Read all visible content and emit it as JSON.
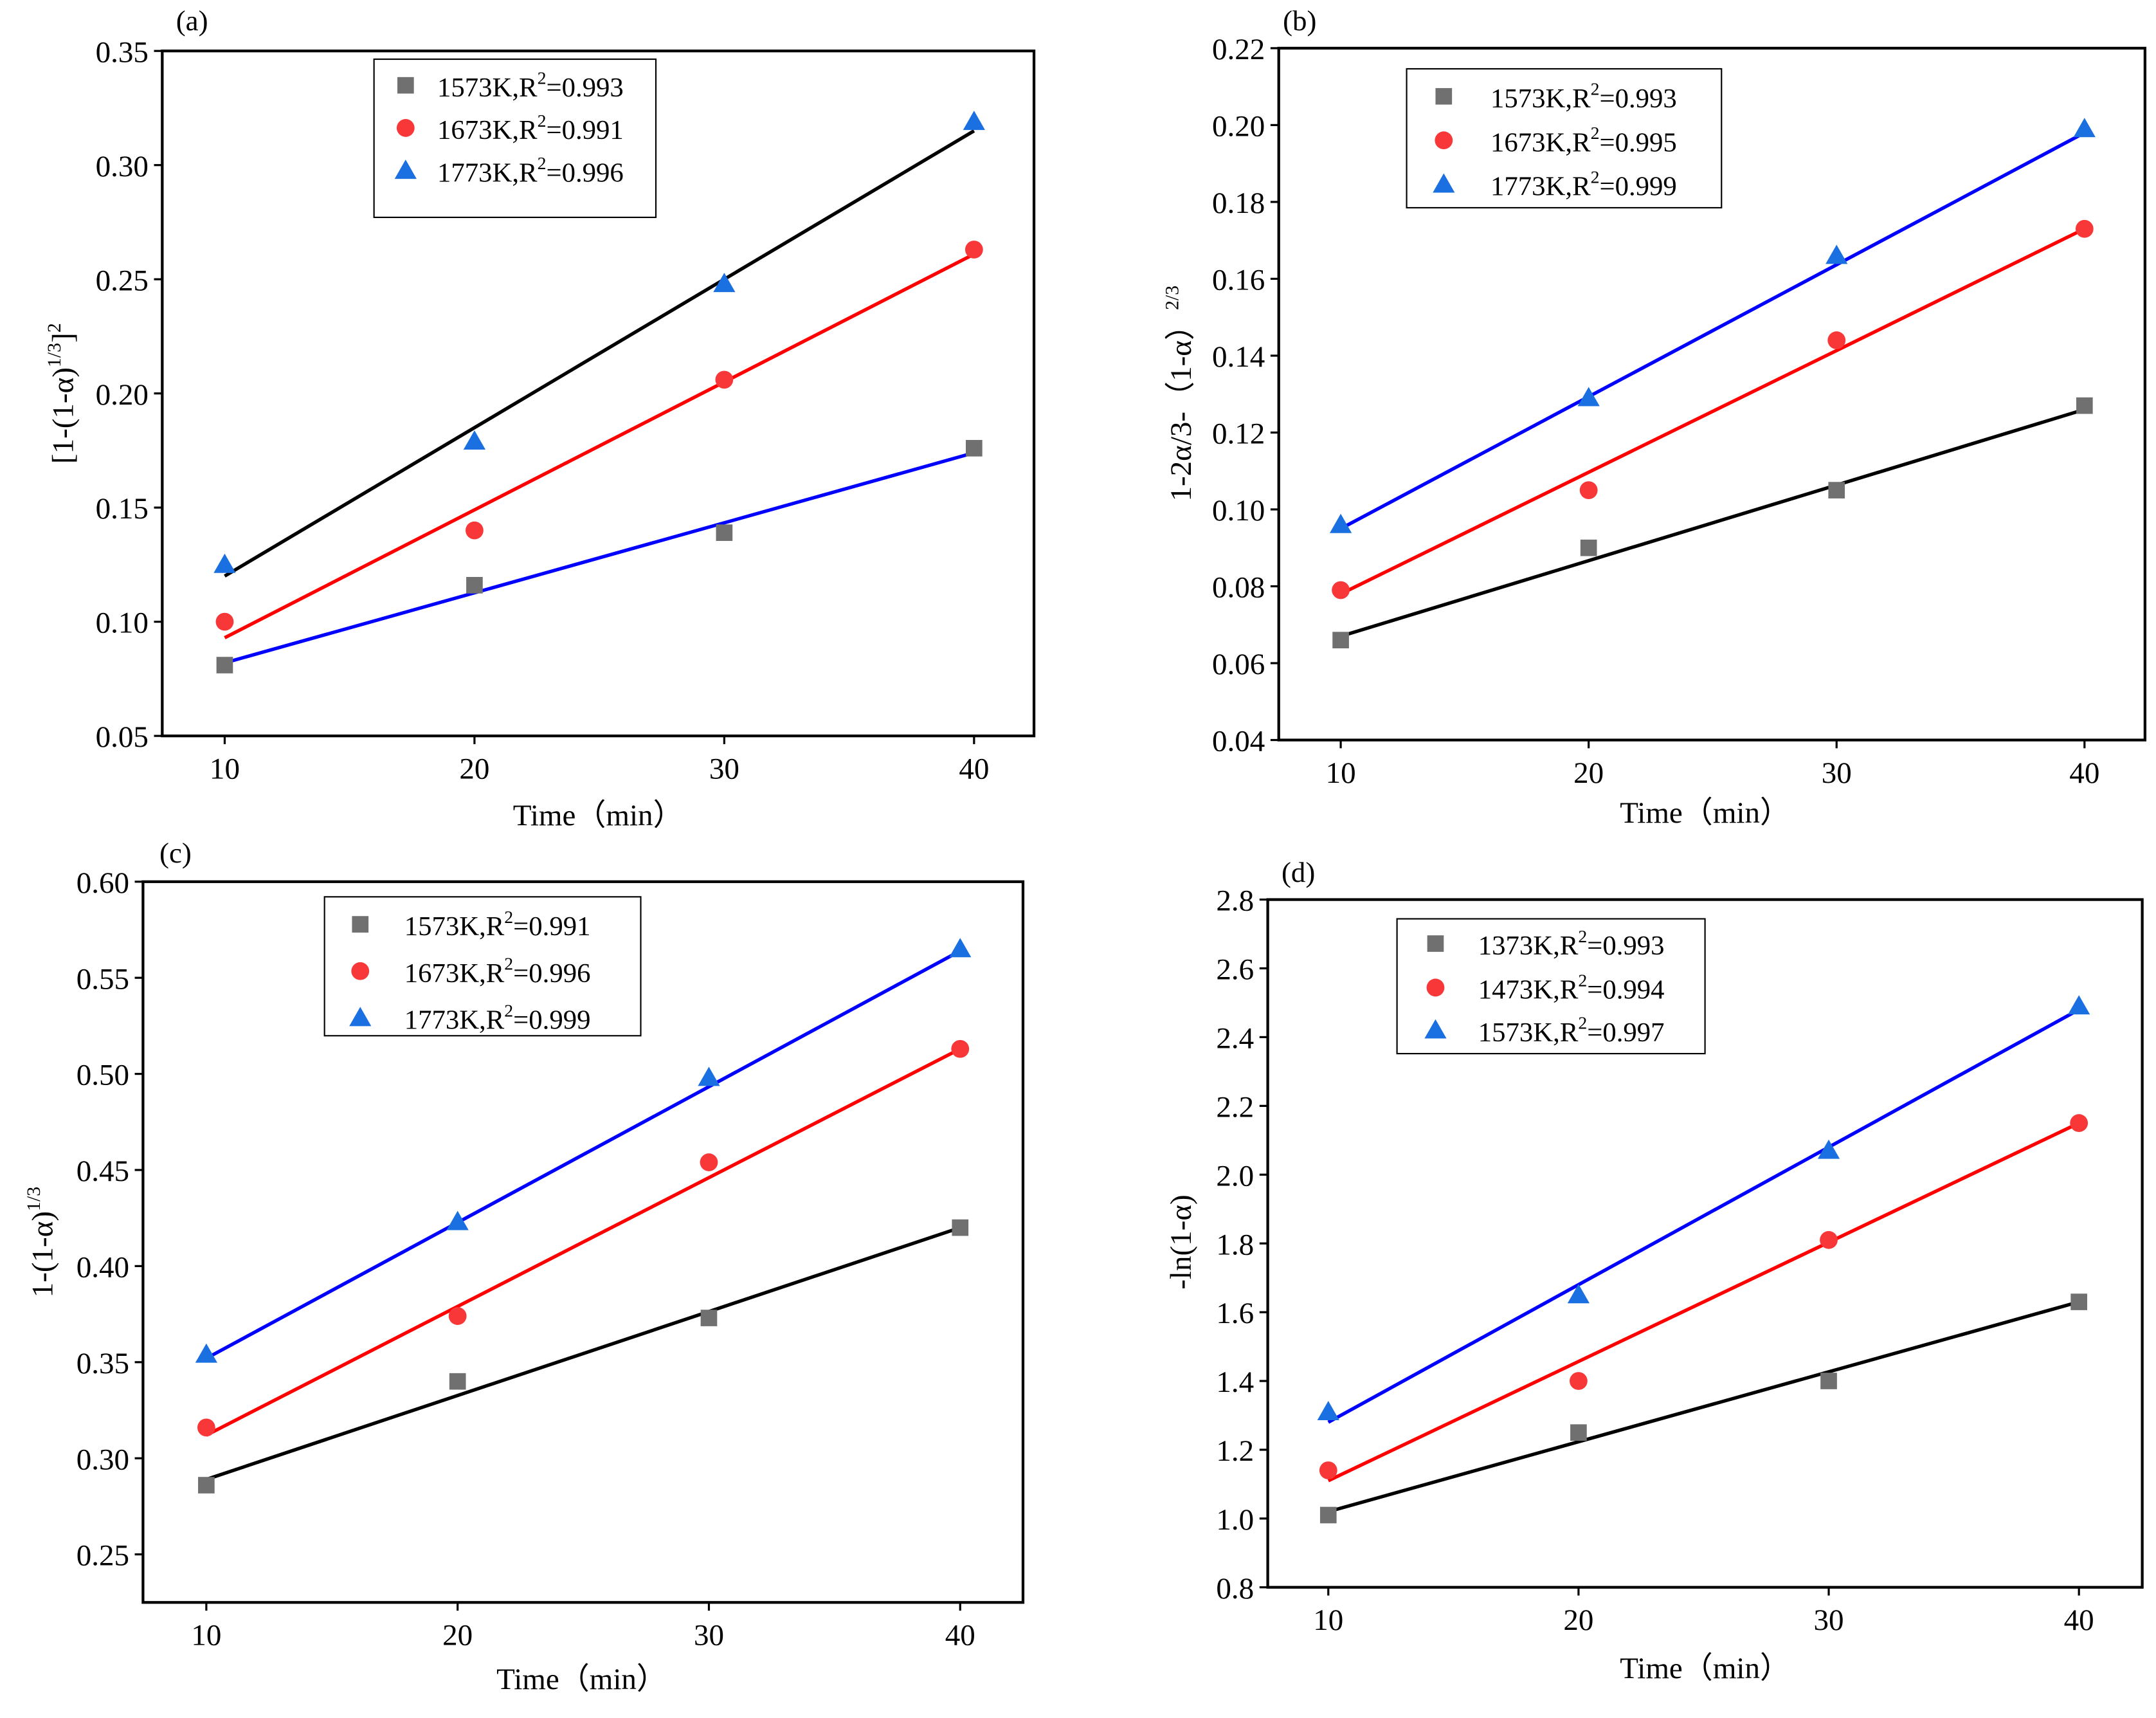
{
  "colors": {
    "square": "#707070",
    "circle": "#f83838",
    "triangle": "#1a70e0",
    "black": "#000000",
    "red": "#ff0000",
    "blue": "#0000ff"
  },
  "chart_data": [
    {
      "type": "scatter",
      "panel_label": "(a)",
      "xlabel": "Time（min）",
      "ylabel": [
        {
          "t": "[1-(1-α)"
        },
        {
          "t": "1/3",
          "sup": true
        },
        {
          "t": "]"
        },
        {
          "t": "2",
          "sup": true
        }
      ],
      "xlim": [
        7.5,
        42.4
      ],
      "ylim": [
        0.05,
        0.35
      ],
      "xticks": [
        10,
        20,
        30,
        40
      ],
      "yticks": [
        "0.05",
        "0.10",
        "0.15",
        "0.20",
        "0.25",
        "0.30",
        "0.35"
      ],
      "x": [
        10,
        20,
        30,
        40
      ],
      "series": [
        {
          "name": "1573K,R",
          "sup": "2",
          "tail": "=0.993",
          "marker": "square",
          "values": [
            0.081,
            0.116,
            0.139,
            0.176
          ],
          "fit": [
            0.082,
            0.174
          ],
          "fit_color": "blue"
        },
        {
          "name": "1673K,R",
          "sup": "2",
          "tail": "=0.991",
          "marker": "circle",
          "values": [
            0.1,
            0.14,
            0.206,
            0.263
          ],
          "fit": [
            0.093,
            0.261
          ],
          "fit_color": "red"
        },
        {
          "name": "1773K,R",
          "sup": "2",
          "tail": "=0.996",
          "marker": "triangle",
          "values": [
            0.125,
            0.179,
            0.248,
            0.319
          ],
          "fit": [
            0.12,
            0.315
          ],
          "fit_color": "black"
        }
      ]
    },
    {
      "type": "scatter",
      "panel_label": "(b)",
      "xlabel": "Time（min）",
      "ylabel": [
        {
          "t": "1-2α/3-（1-α）"
        },
        {
          "t": "2/3",
          "sup": true
        }
      ],
      "xlim": [
        7.5,
        42.44
      ],
      "ylim": [
        0.04,
        0.22
      ],
      "xticks": [
        10,
        20,
        30,
        40
      ],
      "yticks": [
        "0.04",
        "0.06",
        "0.08",
        "0.10",
        "0.12",
        "0.14",
        "0.16",
        "0.18",
        "0.20",
        "0.22"
      ],
      "x": [
        10,
        20,
        30,
        40
      ],
      "series": [
        {
          "name": "1573K,R",
          "sup": "2",
          "tail": "=0.993",
          "marker": "square",
          "values": [
            0.066,
            0.09,
            0.105,
            0.127
          ],
          "fit": [
            0.067,
            0.126
          ],
          "fit_color": "black"
        },
        {
          "name": "1673K,R",
          "sup": "2",
          "tail": "=0.995",
          "marker": "circle",
          "values": [
            0.079,
            0.105,
            0.144,
            0.173
          ],
          "fit": [
            0.078,
            0.173
          ],
          "fit_color": "red"
        },
        {
          "name": "1773K,R",
          "sup": "2",
          "tail": "=0.999",
          "marker": "triangle",
          "values": [
            0.096,
            0.129,
            0.166,
            0.199
          ],
          "fit": [
            0.095,
            0.198
          ],
          "fit_color": "blue"
        }
      ]
    },
    {
      "type": "scatter",
      "panel_label": "(c)",
      "xlabel": "Time（min）",
      "ylabel": [
        {
          "t": "1-(1-α)"
        },
        {
          "t": "1/3",
          "sup": true
        }
      ],
      "xlim": [
        7.48,
        42.5
      ],
      "ylim": [
        0.225,
        0.6
      ],
      "xticks": [
        10,
        20,
        30,
        40
      ],
      "yticks": [
        "0.25",
        "0.30",
        "0.35",
        "0.40",
        "0.45",
        "0.50",
        "0.55",
        "0.60"
      ],
      "x": [
        10,
        20,
        30,
        40
      ],
      "series": [
        {
          "name": "1573K,R",
          "sup": "2",
          "tail": "=0.991",
          "marker": "square",
          "values": [
            0.286,
            0.34,
            0.373,
            0.42
          ],
          "fit": [
            0.289,
            0.42
          ],
          "fit_color": "black"
        },
        {
          "name": "1673K,R",
          "sup": "2",
          "tail": "=0.996",
          "marker": "circle",
          "values": [
            0.316,
            0.374,
            0.454,
            0.513
          ],
          "fit": [
            0.312,
            0.513
          ],
          "fit_color": "red"
        },
        {
          "name": "1773K,R",
          "sup": "2",
          "tail": "=0.999",
          "marker": "triangle",
          "values": [
            0.354,
            0.423,
            0.498,
            0.565
          ],
          "fit": [
            0.352,
            0.564
          ],
          "fit_color": "blue"
        }
      ]
    },
    {
      "type": "scatter",
      "panel_label": "(d)",
      "xlabel": "Time（min）",
      "ylabel": [
        {
          "t": "-ln(1-α)"
        }
      ],
      "xlim": [
        7.58,
        42.53
      ],
      "ylim": [
        0.8,
        2.8
      ],
      "xticks": [
        10,
        20,
        30,
        40
      ],
      "yticks": [
        "0.8",
        "1.0",
        "1.2",
        "1.4",
        "1.6",
        "1.8",
        "2.0",
        "2.2",
        "2.4",
        "2.6",
        "2.8"
      ],
      "x": [
        10,
        20,
        30,
        40
      ],
      "series": [
        {
          "name": "1373K,R",
          "sup": "2",
          "tail": "=0.993",
          "marker": "square",
          "values": [
            1.01,
            1.25,
            1.4,
            1.63
          ],
          "fit": [
            1.02,
            1.63
          ],
          "fit_color": "black"
        },
        {
          "name": "1473K,R",
          "sup": "2",
          "tail": "=0.994",
          "marker": "circle",
          "values": [
            1.14,
            1.4,
            1.81,
            2.15
          ],
          "fit": [
            1.11,
            2.15
          ],
          "fit_color": "red"
        },
        {
          "name": "1573K,R",
          "sup": "2",
          "tail": "=0.997",
          "marker": "triangle",
          "values": [
            1.31,
            1.65,
            2.07,
            2.49
          ],
          "fit": [
            1.28,
            2.48
          ],
          "fit_color": "blue"
        }
      ]
    }
  ]
}
